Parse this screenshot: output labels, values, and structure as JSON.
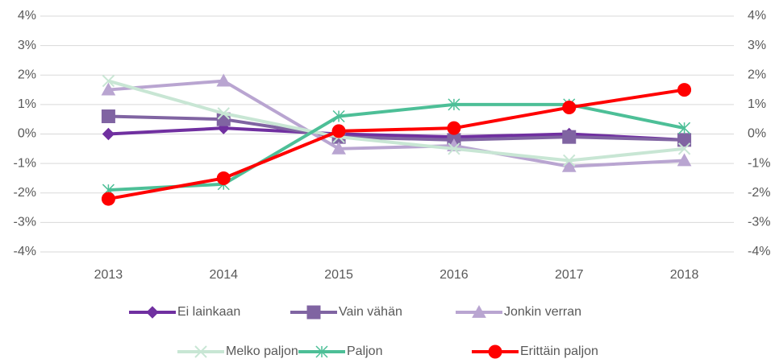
{
  "chart_data": {
    "type": "line",
    "categories": [
      "2013",
      "2014",
      "2015",
      "2016",
      "2017",
      "2018"
    ],
    "ylim": [
      -4,
      4
    ],
    "yticks": [
      {
        "value": -4,
        "label": "-4%"
      },
      {
        "value": -3,
        "label": "-3%"
      },
      {
        "value": -2,
        "label": "-2%"
      },
      {
        "value": -1,
        "label": "-1%"
      },
      {
        "value": 0,
        "label": "0%"
      },
      {
        "value": 1,
        "label": "1%"
      },
      {
        "value": 2,
        "label": "2%"
      },
      {
        "value": 3,
        "label": "3%"
      },
      {
        "value": 4,
        "label": "4%"
      }
    ],
    "y2lim": [
      -4,
      4
    ],
    "y2ticks": [
      {
        "value": -4,
        "label": "-4%"
      },
      {
        "value": -3,
        "label": "-3%"
      },
      {
        "value": -2,
        "label": "-2%"
      },
      {
        "value": -1,
        "label": "-1%"
      },
      {
        "value": 0,
        "label": "0%"
      },
      {
        "value": 1,
        "label": "1%"
      },
      {
        "value": 2,
        "label": "2%"
      },
      {
        "value": 3,
        "label": "3%"
      },
      {
        "value": 4,
        "label": "4%"
      }
    ],
    "grid": true,
    "legend": "bottom",
    "series": [
      {
        "name": "Ei lainkaan",
        "color": "#7030a0",
        "marker": "diamond",
        "values": [
          0,
          0.2,
          0,
          -0.1,
          0,
          -0.2
        ]
      },
      {
        "name": "Vain vähän",
        "color": "#8064a2",
        "marker": "square",
        "values": [
          0.6,
          0.5,
          -0.1,
          -0.2,
          -0.1,
          -0.2
        ]
      },
      {
        "name": "Jonkin verran",
        "color": "#b9a5d1",
        "marker": "triangle",
        "values": [
          1.5,
          1.8,
          -0.5,
          -0.4,
          -1.1,
          -0.9
        ]
      },
      {
        "name": "Melko paljon",
        "color": "#c8e6d4",
        "marker": "x",
        "values": [
          1.8,
          0.7,
          -0.1,
          -0.5,
          -0.9,
          -0.5
        ]
      },
      {
        "name": "Paljon",
        "color": "#4dbf97",
        "marker": "star",
        "values": [
          -1.9,
          -1.7,
          0.6,
          1.0,
          1.0,
          0.2
        ]
      },
      {
        "name": "Erittäin paljon",
        "color": "#ff0000",
        "marker": "circle",
        "values": [
          -2.2,
          -1.5,
          0.1,
          0.2,
          0.9,
          1.5
        ]
      }
    ]
  }
}
